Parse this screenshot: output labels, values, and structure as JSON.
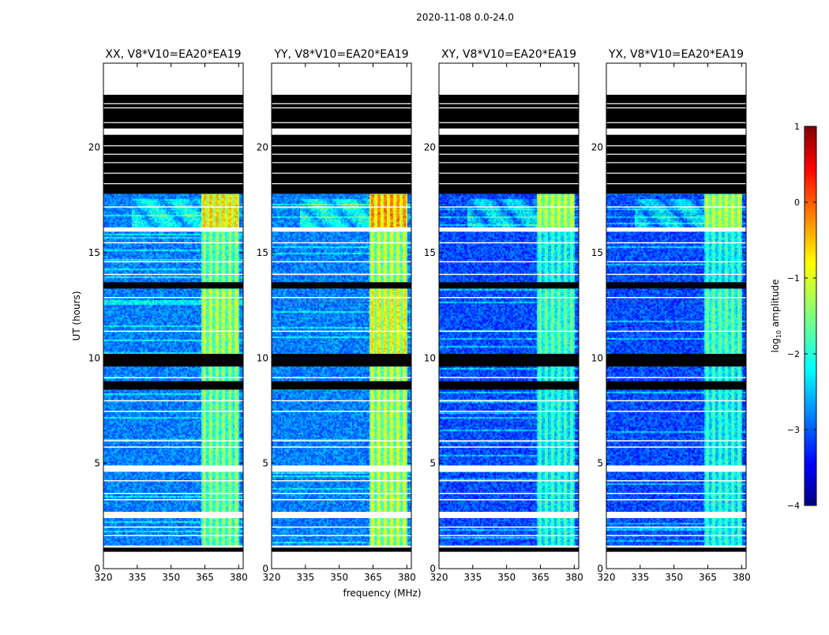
{
  "figure_title": "2020-11-08 0.0-24.0",
  "chart_data": {
    "type": "heatmap",
    "suptitle": "2020-11-08 0.0-24.0",
    "xlabel": "frequency (MHz)",
    "ylabel": "UT (hours)",
    "xlim": [
      320,
      382
    ],
    "ylim": [
      0,
      24
    ],
    "xticks": [
      320,
      335,
      350,
      365,
      380
    ],
    "yticks": [
      0,
      5,
      10,
      15,
      20
    ],
    "colorbar": {
      "label": "log10 amplitude",
      "label_main": "log",
      "label_sub": "10",
      "label_rest": " amplitude",
      "range": [
        -4,
        1
      ],
      "ticks": [
        1,
        0,
        -1,
        -2,
        -3,
        -4
      ],
      "tick_labels": [
        "1",
        "0",
        "−1",
        "−2",
        "−3",
        "−4"
      ],
      "colormap": "jet"
    },
    "panels": [
      {
        "title": "XX, V8*V10=EA20*EA19",
        "pol": "XX",
        "strong_band": [
          363,
          380
        ],
        "strong_level": 0.55
      },
      {
        "title": "YY, V8*V10=EA20*EA19",
        "pol": "YY",
        "strong_band": [
          363,
          380
        ],
        "strong_level": 0.62
      },
      {
        "title": "XY, V8*V10=EA20*EA19",
        "pol": "XY",
        "strong_band": [
          363,
          380
        ],
        "strong_level": 0.45
      },
      {
        "title": "YX, V8*V10=EA20*EA19",
        "pol": "YX",
        "strong_band": [
          363,
          380
        ],
        "strong_level": 0.45
      }
    ],
    "white_gaps_hours": [
      [
        22.5,
        24.0
      ],
      [
        20.6,
        20.9
      ],
      [
        16.0,
        16.2
      ],
      [
        4.6,
        4.9
      ],
      [
        2.4,
        2.7
      ],
      [
        1.0,
        1.1
      ],
      [
        0.0,
        0.8
      ]
    ],
    "black_flagged_hours": [
      [
        17.8,
        22.5
      ],
      [
        20.9,
        21.0
      ],
      [
        13.3,
        13.6
      ],
      [
        9.6,
        10.2
      ],
      [
        8.5,
        8.9
      ],
      [
        0.8,
        1.0
      ]
    ],
    "colors": {
      "flagged": "#000000",
      "gap": "#ffffff"
    }
  }
}
